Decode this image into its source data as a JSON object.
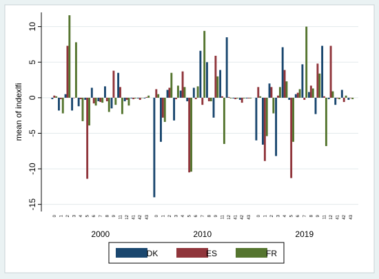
{
  "chart_data": {
    "type": "bar",
    "ylabel": "mean of indexlfi",
    "ylim": [
      -16,
      12
    ],
    "yticks": [
      -15,
      -10,
      -5,
      0,
      5,
      10
    ],
    "grid": true,
    "legend_position": "bottom",
    "groups": [
      "2000",
      "2010",
      "2019"
    ],
    "categories": [
      "0",
      "1",
      "2",
      "3",
      "4",
      "5",
      "6",
      "7",
      "8",
      "9",
      "11",
      "12",
      "41",
      "42",
      "43"
    ],
    "series": [
      {
        "name": "DK",
        "color": "#1a476f",
        "values": {
          "2000": [
            -0.2,
            -1.8,
            0.5,
            -1.8,
            -1.2,
            -0.3,
            1.4,
            -0.5,
            1.6,
            -1.5,
            3.5,
            -0.5,
            -0.1,
            -0.1,
            -0.1
          ],
          "2010": [
            -14.0,
            -6.2,
            1.1,
            -3.2,
            1.0,
            -0.5,
            1.4,
            6.6,
            5.0,
            -2.8,
            3.9,
            8.5,
            -0.1,
            -0.3,
            -0.1
          ],
          "2019": [
            -6.0,
            -6.6,
            2.0,
            -8.2,
            7.1,
            -0.3,
            0.5,
            4.7,
            0.8,
            -2.3,
            7.3,
            -0.2,
            -1.0,
            1.1,
            -0.3
          ]
        }
      },
      {
        "name": "ES",
        "color": "#90353b",
        "values": {
          "2000": [
            0.3,
            -0.2,
            7.3,
            0.0,
            -0.2,
            -11.4,
            -0.8,
            -0.6,
            -0.5,
            3.8,
            1.5,
            -0.3,
            -0.2,
            -0.3,
            0.1
          ],
          "2010": [
            1.2,
            -2.8,
            1.4,
            -0.2,
            3.7,
            -10.5,
            -0.2,
            -1.0,
            -0.5,
            5.9,
            0.2,
            0.1,
            -0.2,
            -0.7,
            -0.1
          ],
          "2019": [
            1.5,
            -8.9,
            1.5,
            0.3,
            3.9,
            -11.3,
            0.7,
            -0.3,
            1.7,
            4.8,
            0.2,
            7.3,
            -0.1,
            -0.6,
            0.0
          ]
        }
      },
      {
        "name": "FR",
        "color": "#55752f",
        "values": {
          "2000": [
            0.2,
            -2.2,
            11.6,
            7.8,
            -3.3,
            -3.9,
            -1.1,
            -0.7,
            -2.0,
            -1.0,
            -2.3,
            -1.1,
            -0.1,
            0.0,
            0.3
          ],
          "2010": [
            0.5,
            -3.4,
            3.5,
            1.7,
            1.5,
            -10.4,
            1.6,
            9.4,
            -0.5,
            3.0,
            -6.5,
            -0.1,
            -0.1,
            -0.1,
            -0.1
          ],
          "2019": [
            0.2,
            -5.4,
            -2.2,
            1.5,
            2.3,
            -6.2,
            1.2,
            10.0,
            1.3,
            3.4,
            -6.8,
            0.9,
            -0.2,
            0.3,
            -0.2
          ]
        }
      }
    ]
  }
}
